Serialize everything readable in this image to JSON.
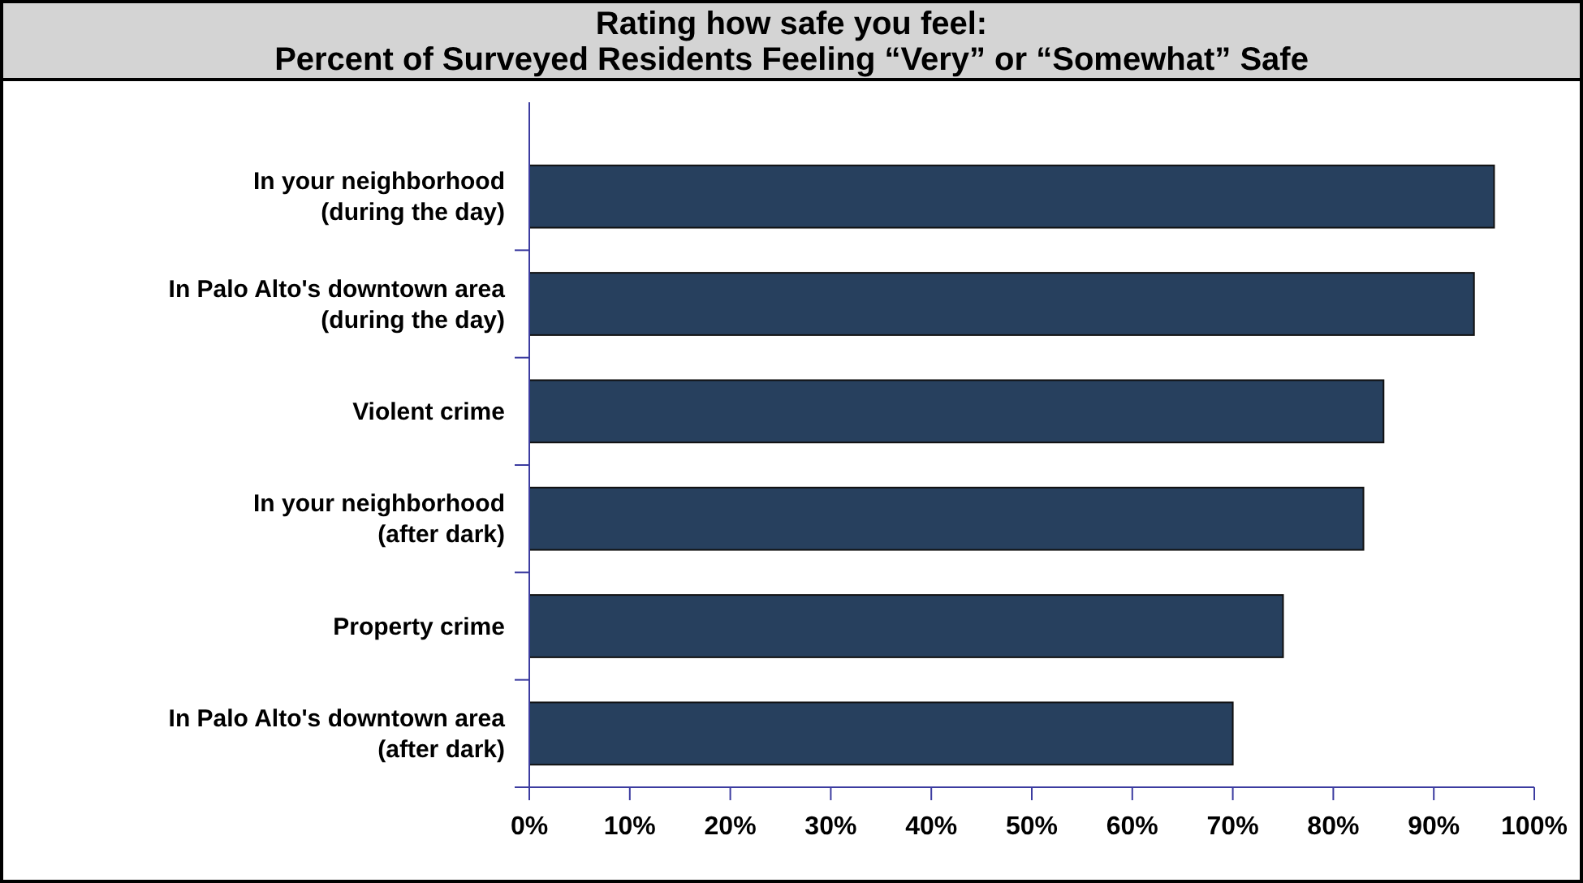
{
  "chart_data": {
    "type": "bar",
    "orientation": "horizontal",
    "title": "Rating how safe you feel:\nPercent of Surveyed Residents Feeling “Very” or “Somewhat” Safe",
    "categories": [
      "In your neighborhood\n(during the day)",
      "In Palo Alto's downtown area\n(during the day)",
      "Violent crime",
      "In your neighborhood\n(after dark)",
      "Property crime",
      "In Palo Alto's downtown area\n(after dark)"
    ],
    "values": [
      96,
      94,
      85,
      83,
      75,
      70
    ],
    "color": "#27405e",
    "xlim": [
      0,
      100
    ],
    "xticks": [
      {
        "value": 0,
        "label": "0%"
      },
      {
        "value": 10,
        "label": "10%"
      },
      {
        "value": 20,
        "label": "20%"
      },
      {
        "value": 30,
        "label": "30%"
      },
      {
        "value": 40,
        "label": "40%"
      },
      {
        "value": 50,
        "label": "50%"
      },
      {
        "value": 60,
        "label": "60%"
      },
      {
        "value": 70,
        "label": "70%"
      },
      {
        "value": 80,
        "label": "80%"
      },
      {
        "value": 90,
        "label": "90%"
      },
      {
        "value": 100,
        "label": "100%"
      }
    ],
    "grid": false
  }
}
